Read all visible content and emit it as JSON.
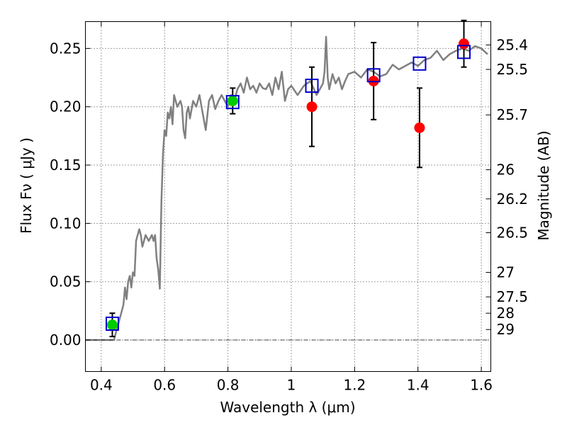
{
  "chart_data": {
    "type": "scatter",
    "xlabel": "Wavelength  λ (μm)",
    "ylabel": "Flux  Fν  ( μJy )",
    "ylabel_right": "Magnitude (AB)",
    "xlim": [
      0.35,
      1.63
    ],
    "ylim": [
      -0.027,
      0.273
    ],
    "x_ticks": [
      0.4,
      0.6,
      0.8,
      1.0,
      1.2,
      1.4,
      1.6
    ],
    "x_tick_labels": [
      "0.4",
      "0.6",
      "0.8",
      "1",
      "1.2",
      "1.4",
      "1.6"
    ],
    "y_ticks": [
      0.0,
      0.05,
      0.1,
      0.15,
      0.2,
      0.25
    ],
    "y_tick_labels": [
      "0.00",
      "0.05",
      "0.10",
      "0.15",
      "0.20",
      "0.25"
    ],
    "right_ticks_flux": [
      0.253,
      0.232,
      0.193,
      0.146,
      0.121,
      0.092,
      0.058,
      0.037,
      0.023,
      0.009
    ],
    "right_tick_labels": [
      "25.4",
      "25.5",
      "25.7",
      "26",
      "26.2",
      "26.5",
      "27",
      "27.5",
      "28",
      "29"
    ],
    "grid": true,
    "model_spectrum": {
      "color": "#808080",
      "x": [
        0.35,
        0.43,
        0.44,
        0.45,
        0.46,
        0.47,
        0.475,
        0.48,
        0.485,
        0.49,
        0.495,
        0.5,
        0.505,
        0.51,
        0.52,
        0.525,
        0.53,
        0.54,
        0.55,
        0.56,
        0.565,
        0.57,
        0.575,
        0.58,
        0.585,
        0.59,
        0.595,
        0.6,
        0.605,
        0.61,
        0.615,
        0.62,
        0.625,
        0.63,
        0.64,
        0.65,
        0.655,
        0.66,
        0.665,
        0.67,
        0.675,
        0.68,
        0.69,
        0.7,
        0.71,
        0.72,
        0.73,
        0.74,
        0.75,
        0.76,
        0.77,
        0.78,
        0.79,
        0.8,
        0.81,
        0.82,
        0.83,
        0.84,
        0.85,
        0.86,
        0.87,
        0.88,
        0.89,
        0.9,
        0.91,
        0.92,
        0.93,
        0.94,
        0.95,
        0.96,
        0.97,
        0.98,
        0.99,
        1.0,
        1.02,
        1.04,
        1.06,
        1.08,
        1.09,
        1.1,
        1.105,
        1.11,
        1.115,
        1.12,
        1.13,
        1.14,
        1.15,
        1.16,
        1.17,
        1.18,
        1.2,
        1.22,
        1.24,
        1.26,
        1.28,
        1.3,
        1.32,
        1.34,
        1.36,
        1.38,
        1.4,
        1.42,
        1.44,
        1.46,
        1.48,
        1.5,
        1.52,
        1.54,
        1.56,
        1.58,
        1.6,
        1.62
      ],
      "y": [
        0.0,
        0.0,
        0.0,
        0.01,
        0.02,
        0.03,
        0.045,
        0.035,
        0.05,
        0.055,
        0.045,
        0.058,
        0.055,
        0.085,
        0.095,
        0.09,
        0.08,
        0.09,
        0.085,
        0.09,
        0.085,
        0.09,
        0.07,
        0.06,
        0.044,
        0.12,
        0.16,
        0.18,
        0.175,
        0.195,
        0.19,
        0.2,
        0.185,
        0.21,
        0.2,
        0.205,
        0.2,
        0.18,
        0.173,
        0.195,
        0.2,
        0.19,
        0.205,
        0.2,
        0.21,
        0.195,
        0.18,
        0.205,
        0.21,
        0.198,
        0.205,
        0.21,
        0.205,
        0.2,
        0.21,
        0.205,
        0.215,
        0.22,
        0.212,
        0.225,
        0.215,
        0.218,
        0.212,
        0.22,
        0.216,
        0.215,
        0.22,
        0.21,
        0.225,
        0.215,
        0.23,
        0.205,
        0.215,
        0.218,
        0.21,
        0.218,
        0.222,
        0.21,
        0.215,
        0.22,
        0.23,
        0.26,
        0.225,
        0.215,
        0.228,
        0.22,
        0.225,
        0.215,
        0.222,
        0.228,
        0.23,
        0.225,
        0.232,
        0.23,
        0.226,
        0.228,
        0.236,
        0.232,
        0.235,
        0.238,
        0.235,
        0.24,
        0.242,
        0.248,
        0.24,
        0.245,
        0.248,
        0.25,
        0.248,
        0.252,
        0.25,
        0.245
      ]
    },
    "series": [
      {
        "marker": "circle",
        "color": "#00cc00",
        "x": [
          0.435,
          0.815
        ],
        "y": [
          0.013,
          0.205
        ],
        "err": [
          0.01,
          0.011
        ]
      },
      {
        "marker": "circle",
        "color": "#ff0000",
        "x": [
          1.065,
          1.26,
          1.405,
          1.545
        ],
        "y": [
          0.2,
          0.222,
          0.182,
          0.254
        ],
        "err": [
          0.034,
          0.033,
          0.034,
          0.02
        ]
      },
      {
        "marker": "open-square",
        "color": "#0000cc",
        "x": [
          0.435,
          0.815,
          1.065,
          1.26,
          1.405,
          1.545
        ],
        "y": [
          0.014,
          0.204,
          0.218,
          0.227,
          0.237,
          0.247
        ]
      }
    ]
  }
}
